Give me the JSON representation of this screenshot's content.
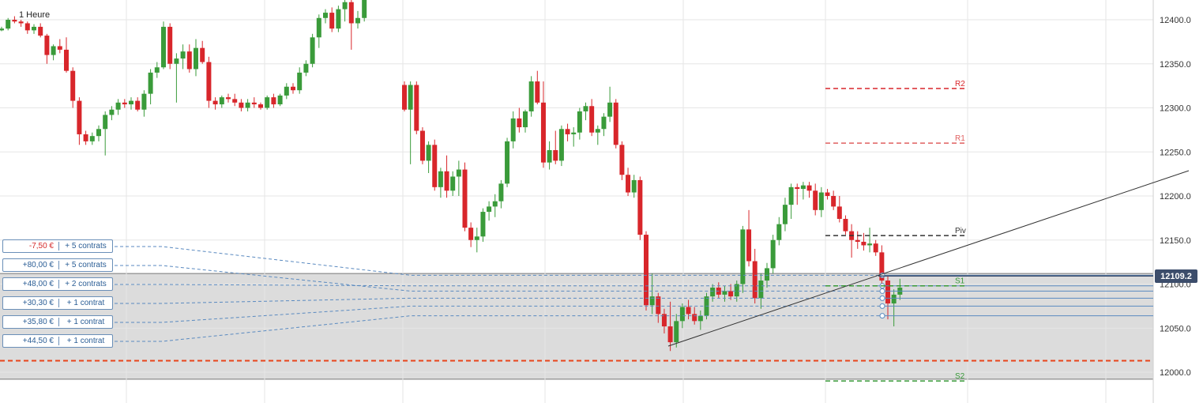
{
  "timeframe": "1 Heure",
  "current_price": "12109.2",
  "colors": {
    "up": "#3a9b3a",
    "down": "#d8262b",
    "pivot": "#333333",
    "r1": "#e06060",
    "r2": "#d8262b",
    "support": "#3a9b3a",
    "stop": "#e8441a",
    "position_line": "#5a8ac0"
  },
  "chart_data": {
    "type": "candlestick",
    "y_axis": {
      "ticks": [
        12400.0,
        12350.0,
        12300.0,
        12250.0,
        12200.0,
        12150.0,
        12100.0,
        12050.0,
        12000.0
      ],
      "range": [
        11982,
        12418
      ],
      "position": "right"
    },
    "grid": true,
    "pivot_levels": [
      {
        "label": "R2",
        "value": 12322
      },
      {
        "label": "R1",
        "value": 12260
      },
      {
        "label": "Piv",
        "value": 12155
      },
      {
        "label": "S1",
        "value": 12098
      },
      {
        "label": "S2",
        "value": 11990
      }
    ],
    "positions": [
      {
        "pnl": "-7,50 €",
        "qty": "+ 5 contrats",
        "entry": 12110
      },
      {
        "pnl": "+80,00 €",
        "qty": "+ 5 contrats",
        "entry": 12092
      },
      {
        "pnl": "+48,00 €",
        "qty": "+ 2 contrats",
        "entry": 12098
      },
      {
        "pnl": "+30,30 €",
        "qty": "+ 1 contrat",
        "entry": 12084
      },
      {
        "pnl": "+35,80 €",
        "qty": "+ 1 contrat",
        "entry": 12075
      },
      {
        "pnl": "+44,50 €",
        "qty": "+ 1 contrat",
        "entry": 12064
      }
    ],
    "trendline": [
      {
        "x": 75,
        "y": 12029
      },
      {
        "x": 154,
        "y": 12228
      }
    ],
    "stop_level": 12013,
    "gray_zone": [
      11992,
      12112
    ],
    "candles": [
      [
        12388,
        12392,
        12387,
        12390
      ],
      [
        12390,
        12402,
        12388,
        12400
      ],
      [
        12400,
        12404,
        12396,
        12398
      ],
      [
        12398,
        12400,
        12392,
        12396
      ],
      [
        12396,
        12398,
        12384,
        12388
      ],
      [
        12388,
        12395,
        12384,
        12392
      ],
      [
        12392,
        12396,
        12380,
        12382
      ],
      [
        12382,
        12384,
        12350,
        12360
      ],
      [
        12360,
        12372,
        12354,
        12370
      ],
      [
        12370,
        12378,
        12362,
        12366
      ],
      [
        12366,
        12380,
        12340,
        12342
      ],
      [
        12342,
        12346,
        12300,
        12308
      ],
      [
        12308,
        12312,
        12258,
        12270
      ],
      [
        12270,
        12274,
        12258,
        12262
      ],
      [
        12262,
        12272,
        12258,
        12268
      ],
      [
        12268,
        12280,
        12262,
        12276
      ],
      [
        12276,
        12296,
        12246,
        12292
      ],
      [
        12292,
        12302,
        12286,
        12298
      ],
      [
        12298,
        12310,
        12292,
        12306
      ],
      [
        12306,
        12310,
        12300,
        12304
      ],
      [
        12304,
        12312,
        12298,
        12308
      ],
      [
        12308,
        12312,
        12296,
        12298
      ],
      [
        12298,
        12320,
        12290,
        12316
      ],
      [
        12316,
        12344,
        12304,
        12340
      ],
      [
        12340,
        12352,
        12334,
        12346
      ],
      [
        12346,
        12398,
        12344,
        12392
      ],
      [
        12392,
        12396,
        12344,
        12350
      ],
      [
        12350,
        12362,
        12306,
        12356
      ],
      [
        12356,
        12372,
        12344,
        12364
      ],
      [
        12364,
        12372,
        12340,
        12344
      ],
      [
        12344,
        12378,
        12336,
        12368
      ],
      [
        12368,
        12376,
        12350,
        12352
      ],
      [
        12352,
        12358,
        12300,
        12308
      ],
      [
        12308,
        12312,
        12298,
        12304
      ],
      [
        12304,
        12314,
        12300,
        12312
      ],
      [
        12312,
        12316,
        12306,
        12310
      ],
      [
        12310,
        12316,
        12302,
        12306
      ],
      [
        12306,
        12310,
        12296,
        12300
      ],
      [
        12300,
        12310,
        12296,
        12306
      ],
      [
        12306,
        12312,
        12300,
        12304
      ],
      [
        12304,
        12306,
        12298,
        12300
      ],
      [
        12300,
        12314,
        12298,
        12312
      ],
      [
        12312,
        12316,
        12300,
        12304
      ],
      [
        12304,
        12316,
        12302,
        12314
      ],
      [
        12314,
        12328,
        12310,
        12324
      ],
      [
        12324,
        12328,
        12316,
        12320
      ],
      [
        12320,
        12346,
        12316,
        12340
      ],
      [
        12340,
        12354,
        12336,
        12350
      ],
      [
        12350,
        12384,
        12346,
        12380
      ],
      [
        12380,
        12406,
        12368,
        12402
      ],
      [
        12402,
        12412,
        12396,
        12408
      ],
      [
        12408,
        12414,
        12386,
        12390
      ],
      [
        12390,
        12416,
        12386,
        12412
      ],
      [
        12412,
        12424,
        12398,
        12420
      ],
      [
        12420,
        12426,
        12366,
        12396
      ],
      [
        12396,
        12410,
        12390,
        12402
      ],
      [
        12402,
        12430,
        12398,
        12426
      ],
      [
        12326,
        12330,
        12296,
        12298
      ],
      [
        12298,
        12330,
        12236,
        12326
      ],
      [
        12326,
        12330,
        12270,
        12274
      ],
      [
        12274,
        12278,
        12236,
        12240
      ],
      [
        12240,
        12262,
        12226,
        12258
      ],
      [
        12258,
        12264,
        12206,
        12210
      ],
      [
        12210,
        12232,
        12198,
        12228
      ],
      [
        12228,
        12246,
        12198,
        12206
      ],
      [
        12206,
        12228,
        12200,
        12222
      ],
      [
        12222,
        12240,
        12200,
        12230
      ],
      [
        12230,
        12238,
        12160,
        12164
      ],
      [
        12164,
        12170,
        12142,
        12150
      ],
      [
        12150,
        12164,
        12136,
        12154
      ],
      [
        12154,
        12186,
        12148,
        12182
      ],
      [
        12182,
        12194,
        12172,
        12188
      ],
      [
        12188,
        12202,
        12176,
        12194
      ],
      [
        12194,
        12218,
        12186,
        12214
      ],
      [
        12214,
        12266,
        12210,
        12262
      ],
      [
        12262,
        12296,
        12254,
        12288
      ],
      [
        12288,
        12300,
        12272,
        12278
      ],
      [
        12278,
        12298,
        12272,
        12296
      ],
      [
        12296,
        12336,
        12290,
        12330
      ],
      [
        12330,
        12342,
        12304,
        12306
      ],
      [
        12306,
        12330,
        12232,
        12238
      ],
      [
        12238,
        12262,
        12230,
        12252
      ],
      [
        12252,
        12274,
        12236,
        12240
      ],
      [
        12240,
        12280,
        12234,
        12276
      ],
      [
        12276,
        12282,
        12262,
        12270
      ],
      [
        12270,
        12278,
        12256,
        12272
      ],
      [
        12272,
        12300,
        12264,
        12296
      ],
      [
        12296,
        12306,
        12286,
        12302
      ],
      [
        12302,
        12310,
        12268,
        12272
      ],
      [
        12272,
        12280,
        12258,
        12276
      ],
      [
        12276,
        12294,
        12268,
        12290
      ],
      [
        12290,
        12324,
        12284,
        12306
      ],
      [
        12306,
        12310,
        12254,
        12258
      ],
      [
        12258,
        12262,
        12218,
        12224
      ],
      [
        12224,
        12232,
        12200,
        12204
      ],
      [
        12204,
        12224,
        12198,
        12218
      ],
      [
        12218,
        12222,
        12150,
        12156
      ],
      [
        12156,
        12160,
        12070,
        12076
      ],
      [
        12076,
        12112,
        12066,
        12086
      ],
      [
        12086,
        12090,
        12056,
        12066
      ],
      [
        12066,
        12072,
        12044,
        12052
      ],
      [
        12052,
        12080,
        12024,
        12034
      ],
      [
        12034,
        12066,
        12028,
        12058
      ],
      [
        12058,
        12078,
        12050,
        12074
      ],
      [
        12074,
        12082,
        12060,
        12066
      ],
      [
        12066,
        12074,
        12054,
        12058
      ],
      [
        12058,
        12070,
        12048,
        12064
      ],
      [
        12064,
        12090,
        12060,
        12086
      ],
      [
        12086,
        12100,
        12080,
        12096
      ],
      [
        12096,
        12102,
        12084,
        12088
      ],
      [
        12088,
        12098,
        12080,
        12092
      ],
      [
        12092,
        12100,
        12082,
        12086
      ],
      [
        12086,
        12104,
        12080,
        12100
      ],
      [
        12100,
        12166,
        12090,
        12162
      ],
      [
        12162,
        12184,
        12120,
        12126
      ],
      [
        12126,
        12140,
        12078,
        12084
      ],
      [
        12084,
        12112,
        12072,
        12104
      ],
      [
        12104,
        12124,
        12096,
        12118
      ],
      [
        12118,
        12156,
        12112,
        12150
      ],
      [
        12150,
        12176,
        12144,
        12168
      ],
      [
        12168,
        12198,
        12160,
        12190
      ],
      [
        12190,
        12214,
        12174,
        12210
      ],
      [
        12210,
        12214,
        12190,
        12208
      ],
      [
        12208,
        12216,
        12196,
        12212
      ],
      [
        12212,
        12216,
        12198,
        12206
      ],
      [
        12206,
        12214,
        12178,
        12184
      ],
      [
        12184,
        12210,
        12176,
        12204
      ],
      [
        12204,
        12208,
        12196,
        12200
      ],
      [
        12200,
        12206,
        12184,
        12188
      ],
      [
        12188,
        12200,
        12170,
        12174
      ],
      [
        12174,
        12178,
        12156,
        12160
      ],
      [
        12160,
        12168,
        12130,
        12150
      ],
      [
        12150,
        12160,
        12140,
        12148
      ],
      [
        12148,
        12158,
        12138,
        12144
      ],
      [
        12144,
        12164,
        12136,
        12146
      ],
      [
        12146,
        12150,
        12132,
        12136
      ],
      [
        12136,
        12144,
        12100,
        12104
      ],
      [
        12104,
        12110,
        12060,
        12078
      ],
      [
        12078,
        12094,
        12052,
        12088
      ],
      [
        12088,
        12106,
        12082,
        12096
      ]
    ]
  }
}
